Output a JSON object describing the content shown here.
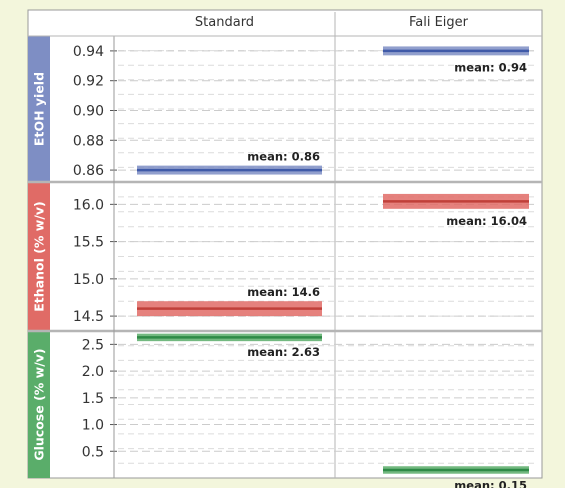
{
  "chart_data": {
    "type": "bar",
    "layout": "faceted-grid",
    "columns": [
      "Standard",
      "Fali Eiger"
    ],
    "mean_prefix": "mean: ",
    "panels": [
      {
        "ylabel": "EtOH yield",
        "color": "#7e8ec4",
        "bar_color": "#3f5aa8",
        "ylim": [
          0.852,
          0.95
        ],
        "ticks": [
          "0.86",
          "0.88",
          "0.90",
          "0.92",
          "0.94"
        ],
        "means": [
          0.86,
          0.94
        ],
        "mean_labels": [
          "0.86",
          "0.94"
        ],
        "band_half_width": 0.003
      },
      {
        "ylabel": "Ethanol (% w/v)",
        "color": "#e06b66",
        "bar_color": "#c0403a",
        "ylim": [
          14.3,
          16.3
        ],
        "ticks": [
          "14.5",
          "15.0",
          "15.5",
          "16.0"
        ],
        "means": [
          14.6,
          16.04
        ],
        "mean_labels": [
          "14.6",
          "16.04"
        ],
        "band_half_width": 0.1
      },
      {
        "ylabel": "Glucose (% w/v)",
        "color": "#5aad6a",
        "bar_color": "#2e8a46",
        "ylim": [
          0.0,
          2.75
        ],
        "ticks": [
          "0.5",
          "1.0",
          "1.5",
          "2.0",
          "2.5"
        ],
        "means": [
          2.63,
          0.15
        ],
        "mean_labels": [
          "2.63",
          "0.15"
        ],
        "band_half_width": 0.07
      }
    ]
  }
}
